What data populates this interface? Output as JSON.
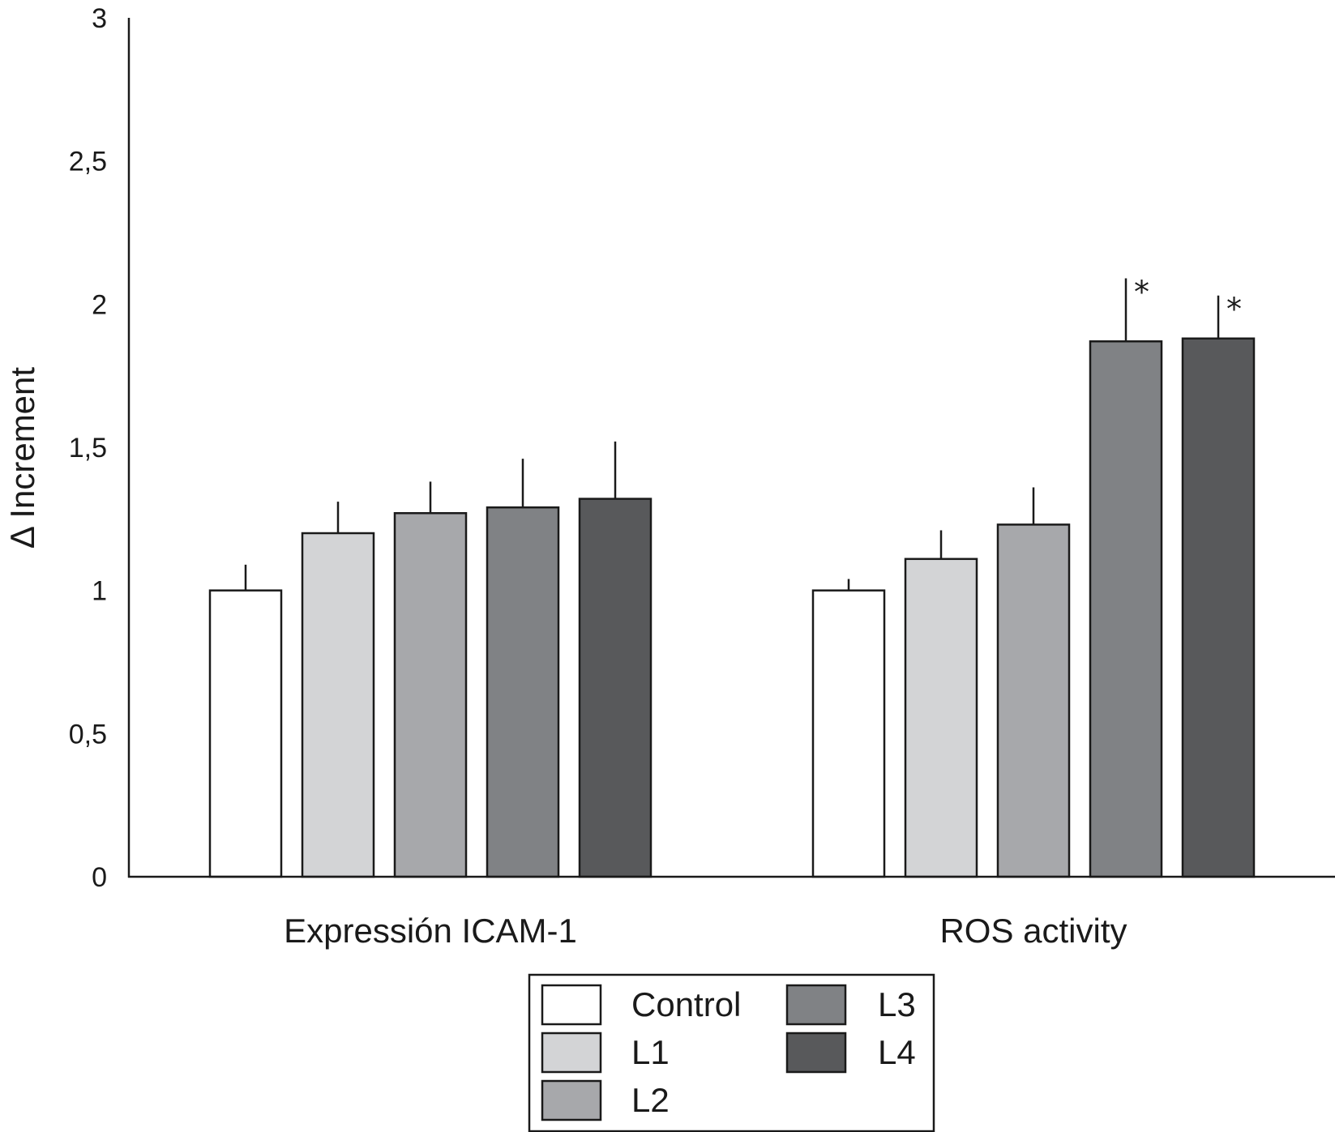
{
  "chart_data": {
    "type": "bar",
    "categories": [
      "Expressión ICAM-1",
      "ROS activity"
    ],
    "ylabel": "Δ Increment",
    "xlabel": "",
    "ylim": [
      0,
      3
    ],
    "yticks": [
      "0",
      "0,5",
      "1",
      "1,5",
      "2",
      "2,5",
      "3"
    ],
    "ytick_values": [
      0,
      0.5,
      1,
      1.5,
      2,
      2.5,
      3
    ],
    "grid": false,
    "legend_position": "bottom-center",
    "series": [
      {
        "name": "Control",
        "color": "#ffffff",
        "values": [
          1.0,
          1.0
        ],
        "errors": [
          0.09,
          0.04
        ],
        "significance": [
          "",
          ""
        ]
      },
      {
        "name": "L1",
        "color": "#d3d4d6",
        "values": [
          1.2,
          1.11
        ],
        "errors": [
          0.11,
          0.1
        ],
        "significance": [
          "",
          ""
        ]
      },
      {
        "name": "L2",
        "color": "#a7a8ab",
        "values": [
          1.27,
          1.23
        ],
        "errors": [
          0.11,
          0.13
        ],
        "significance": [
          "",
          ""
        ]
      },
      {
        "name": "L3",
        "color": "#808285",
        "values": [
          1.29,
          1.87
        ],
        "errors": [
          0.17,
          0.22
        ],
        "significance": [
          "",
          "*"
        ]
      },
      {
        "name": "L4",
        "color": "#58595b",
        "values": [
          1.32,
          1.88
        ],
        "errors": [
          0.2,
          0.15
        ],
        "significance": [
          "",
          "*"
        ]
      }
    ]
  }
}
